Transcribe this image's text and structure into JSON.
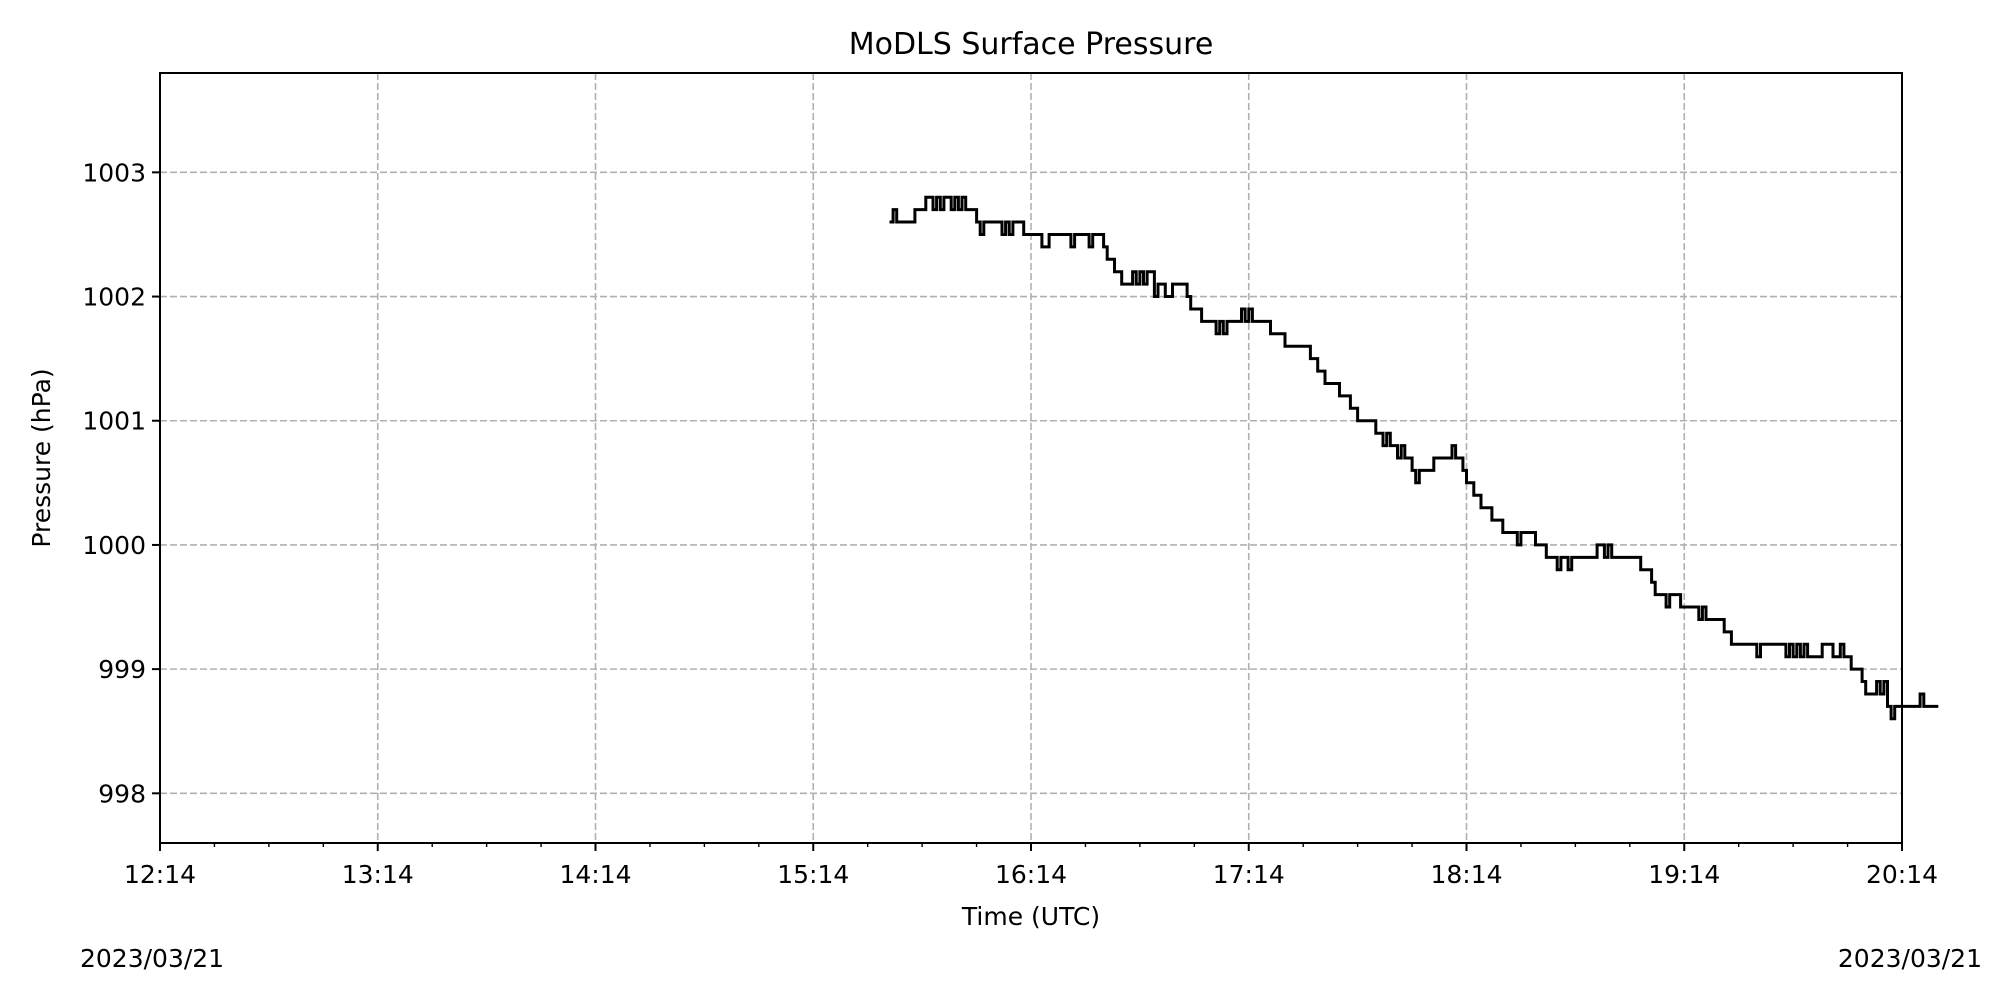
{
  "chart_data": {
    "type": "line",
    "title": "MoDLS Surface Pressure",
    "xlabel": "Time (UTC)",
    "ylabel": "Pressure (hPa)",
    "x_axis_type": "time",
    "x_range": [
      "2023-03-21 12:14",
      "2023-03-21 20:14"
    ],
    "x_tick_labels": [
      "12:14",
      "13:14",
      "14:14",
      "15:14",
      "16:14",
      "17:14",
      "18:14",
      "19:14",
      "20:14"
    ],
    "ylim": [
      997.6,
      1003.8
    ],
    "y_ticks": [
      998,
      999,
      1000,
      1001,
      1002,
      1003
    ],
    "grid": true,
    "line_color": "#000000",
    "date_left": "2023/03/21",
    "date_right": "2023/03/21",
    "series": [
      {
        "style": "step",
        "points": [
          [
            "15:35",
            1002.6
          ],
          [
            "15:36",
            1002.7
          ],
          [
            "15:37",
            1002.6
          ],
          [
            "15:42",
            1002.7
          ],
          [
            "15:45",
            1002.8
          ],
          [
            "15:47",
            1002.7
          ],
          [
            "15:48",
            1002.8
          ],
          [
            "15:49",
            1002.7
          ],
          [
            "15:50",
            1002.8
          ],
          [
            "15:52",
            1002.7
          ],
          [
            "15:53",
            1002.8
          ],
          [
            "15:54",
            1002.7
          ],
          [
            "15:55",
            1002.8
          ],
          [
            "15:56",
            1002.7
          ],
          [
            "15:59",
            1002.6
          ],
          [
            "16:00",
            1002.5
          ],
          [
            "16:01",
            1002.6
          ],
          [
            "16:06",
            1002.5
          ],
          [
            "16:07",
            1002.6
          ],
          [
            "16:08",
            1002.5
          ],
          [
            "16:09",
            1002.6
          ],
          [
            "16:12",
            1002.5
          ],
          [
            "16:17",
            1002.4
          ],
          [
            "16:19",
            1002.5
          ],
          [
            "16:25",
            1002.4
          ],
          [
            "16:26",
            1002.5
          ],
          [
            "16:30",
            1002.4
          ],
          [
            "16:31",
            1002.5
          ],
          [
            "16:34",
            1002.4
          ],
          [
            "16:35",
            1002.3
          ],
          [
            "16:37",
            1002.2
          ],
          [
            "16:39",
            1002.1
          ],
          [
            "16:41",
            1002.1
          ],
          [
            "16:42",
            1002.2
          ],
          [
            "16:43",
            1002.1
          ],
          [
            "16:44",
            1002.2
          ],
          [
            "16:45",
            1002.1
          ],
          [
            "16:46",
            1002.2
          ],
          [
            "16:48",
            1002.0
          ],
          [
            "16:49",
            1002.1
          ],
          [
            "16:51",
            1002.0
          ],
          [
            "16:53",
            1002.1
          ],
          [
            "16:57",
            1002.0
          ],
          [
            "16:58",
            1001.9
          ],
          [
            "17:01",
            1001.8
          ],
          [
            "17:05",
            1001.7
          ],
          [
            "17:06",
            1001.8
          ],
          [
            "17:07",
            1001.7
          ],
          [
            "17:08",
            1001.8
          ],
          [
            "17:12",
            1001.9
          ],
          [
            "17:13",
            1001.8
          ],
          [
            "17:14",
            1001.9
          ],
          [
            "17:15",
            1001.8
          ],
          [
            "17:20",
            1001.7
          ],
          [
            "17:24",
            1001.6
          ],
          [
            "17:31",
            1001.5
          ],
          [
            "17:33",
            1001.4
          ],
          [
            "17:35",
            1001.3
          ],
          [
            "17:39",
            1001.2
          ],
          [
            "17:42",
            1001.1
          ],
          [
            "17:44",
            1001.0
          ],
          [
            "17:49",
            1000.9
          ],
          [
            "17:51",
            1000.8
          ],
          [
            "17:52",
            1000.9
          ],
          [
            "17:53",
            1000.8
          ],
          [
            "17:55",
            1000.7
          ],
          [
            "17:56",
            1000.8
          ],
          [
            "17:57",
            1000.7
          ],
          [
            "17:59",
            1000.6
          ],
          [
            "18:00",
            1000.5
          ],
          [
            "18:01",
            1000.6
          ],
          [
            "18:05",
            1000.7
          ],
          [
            "18:10",
            1000.8
          ],
          [
            "18:11",
            1000.7
          ],
          [
            "18:13",
            1000.6
          ],
          [
            "18:14",
            1000.5
          ],
          [
            "18:16",
            1000.4
          ],
          [
            "18:18",
            1000.3
          ],
          [
            "18:21",
            1000.2
          ],
          [
            "18:24",
            1000.1
          ],
          [
            "18:28",
            1000.0
          ],
          [
            "18:29",
            1000.1
          ],
          [
            "18:33",
            1000.0
          ],
          [
            "18:36",
            999.9
          ],
          [
            "18:39",
            999.8
          ],
          [
            "18:40",
            999.9
          ],
          [
            "18:42",
            999.8
          ],
          [
            "18:43",
            999.9
          ],
          [
            "18:50",
            1000.0
          ],
          [
            "18:52",
            999.9
          ],
          [
            "18:53",
            1000.0
          ],
          [
            "18:54",
            999.9
          ],
          [
            "19:02",
            999.8
          ],
          [
            "19:05",
            999.7
          ],
          [
            "19:06",
            999.6
          ],
          [
            "19:09",
            999.5
          ],
          [
            "19:10",
            999.6
          ],
          [
            "19:13",
            999.5
          ],
          [
            "19:18",
            999.4
          ],
          [
            "19:19",
            999.5
          ],
          [
            "19:20",
            999.4
          ],
          [
            "19:25",
            999.3
          ],
          [
            "19:27",
            999.2
          ],
          [
            "19:34",
            999.1
          ],
          [
            "19:35",
            999.2
          ],
          [
            "19:42",
            999.1
          ],
          [
            "19:43",
            999.2
          ],
          [
            "19:44",
            999.1
          ],
          [
            "19:45",
            999.2
          ],
          [
            "19:46",
            999.1
          ],
          [
            "19:47",
            999.2
          ],
          [
            "19:48",
            999.1
          ],
          [
            "19:52",
            999.2
          ],
          [
            "19:55",
            999.1
          ],
          [
            "19:57",
            999.2
          ],
          [
            "19:58",
            999.1
          ],
          [
            "20:00",
            999.0
          ],
          [
            "20:03",
            998.9
          ],
          [
            "20:04",
            998.8
          ],
          [
            "20:07",
            998.9
          ],
          [
            "20:08",
            998.8
          ],
          [
            "20:09",
            998.9
          ],
          [
            "20:10",
            998.7
          ],
          [
            "20:11",
            998.6
          ],
          [
            "20:12",
            998.7
          ],
          [
            "20:19",
            998.8
          ],
          [
            "20:20",
            998.7
          ],
          [
            "20:24",
            998.7
          ]
        ]
      }
    ]
  }
}
